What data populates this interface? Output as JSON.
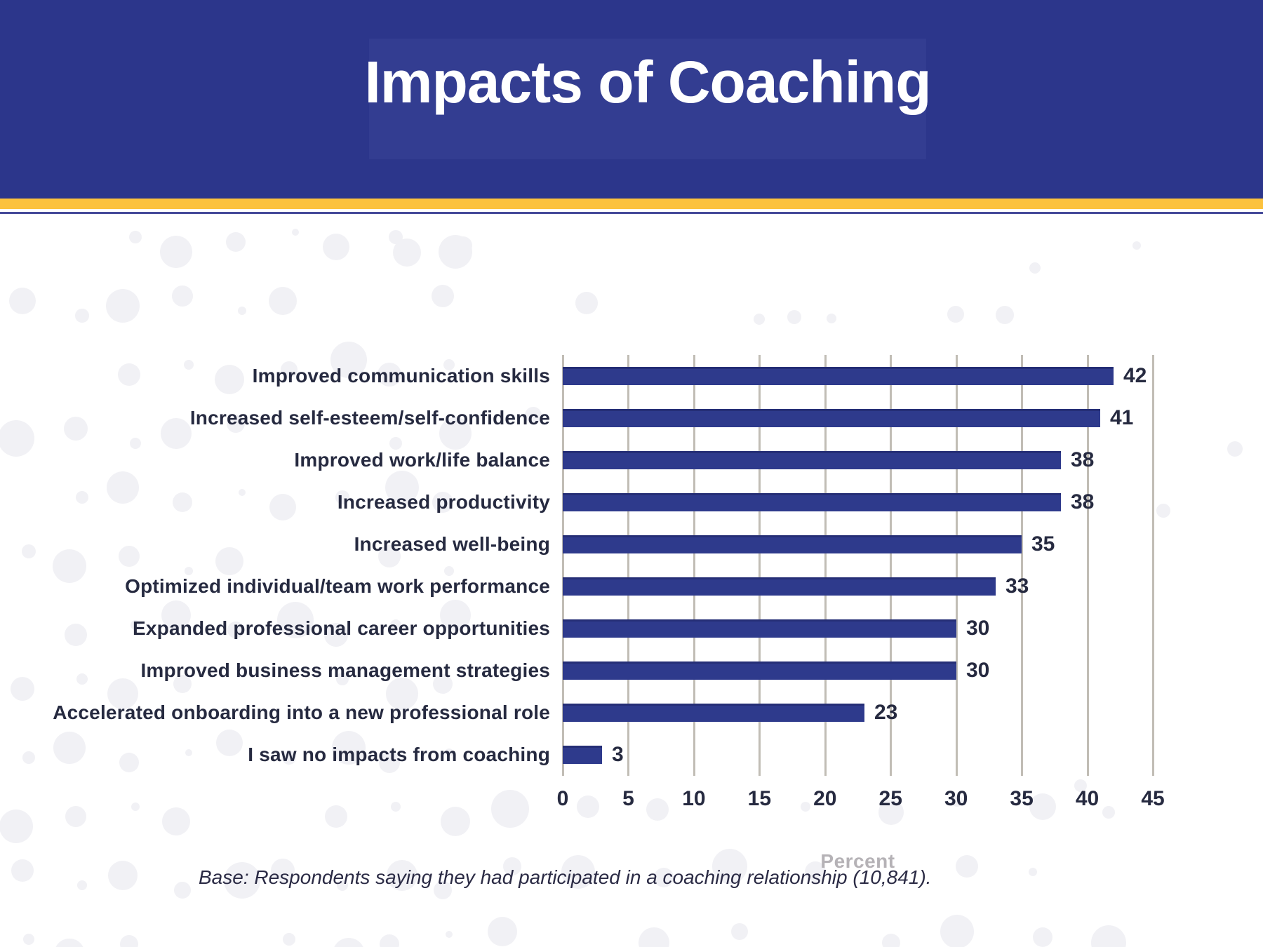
{
  "header": {
    "title": "Impacts of Coaching"
  },
  "chart_data": {
    "type": "bar",
    "orientation": "horizontal",
    "title": "Impacts of Coaching",
    "categories": [
      "Improved communication skills",
      "Increased self-esteem/self-confidence",
      "Improved work/life balance",
      "Increased productivity",
      "Increased well-being",
      "Optimized individual/team work performance",
      "Expanded professional career opportunities",
      "Improved business management strategies",
      "Accelerated onboarding into a new professional role",
      "I saw no impacts from coaching"
    ],
    "values": [
      42,
      41,
      38,
      38,
      35,
      33,
      30,
      30,
      23,
      3
    ],
    "xlabel": "Percent",
    "xlim": [
      0,
      45
    ],
    "xticks": [
      0,
      5,
      10,
      15,
      20,
      25,
      30,
      35,
      40,
      45
    ],
    "grid": true,
    "legend_position": "none",
    "bar_color": "#2e3a8c"
  },
  "colors": {
    "banner_blue": "#2c368b",
    "banner_highlight": "#333d91",
    "gold_accent": "#fcc23d",
    "thin_blue_line": "#454a99",
    "bar_blue": "#2e3a8c",
    "text_navy": "#262a40",
    "gridline_gray": "#c1bdb5",
    "axis_title_gray": "#b5b2b6",
    "dot_gray": "#f1f1f5"
  },
  "footnote": "Base: Respondents saying they had participated in a coaching relationship (10,841)."
}
